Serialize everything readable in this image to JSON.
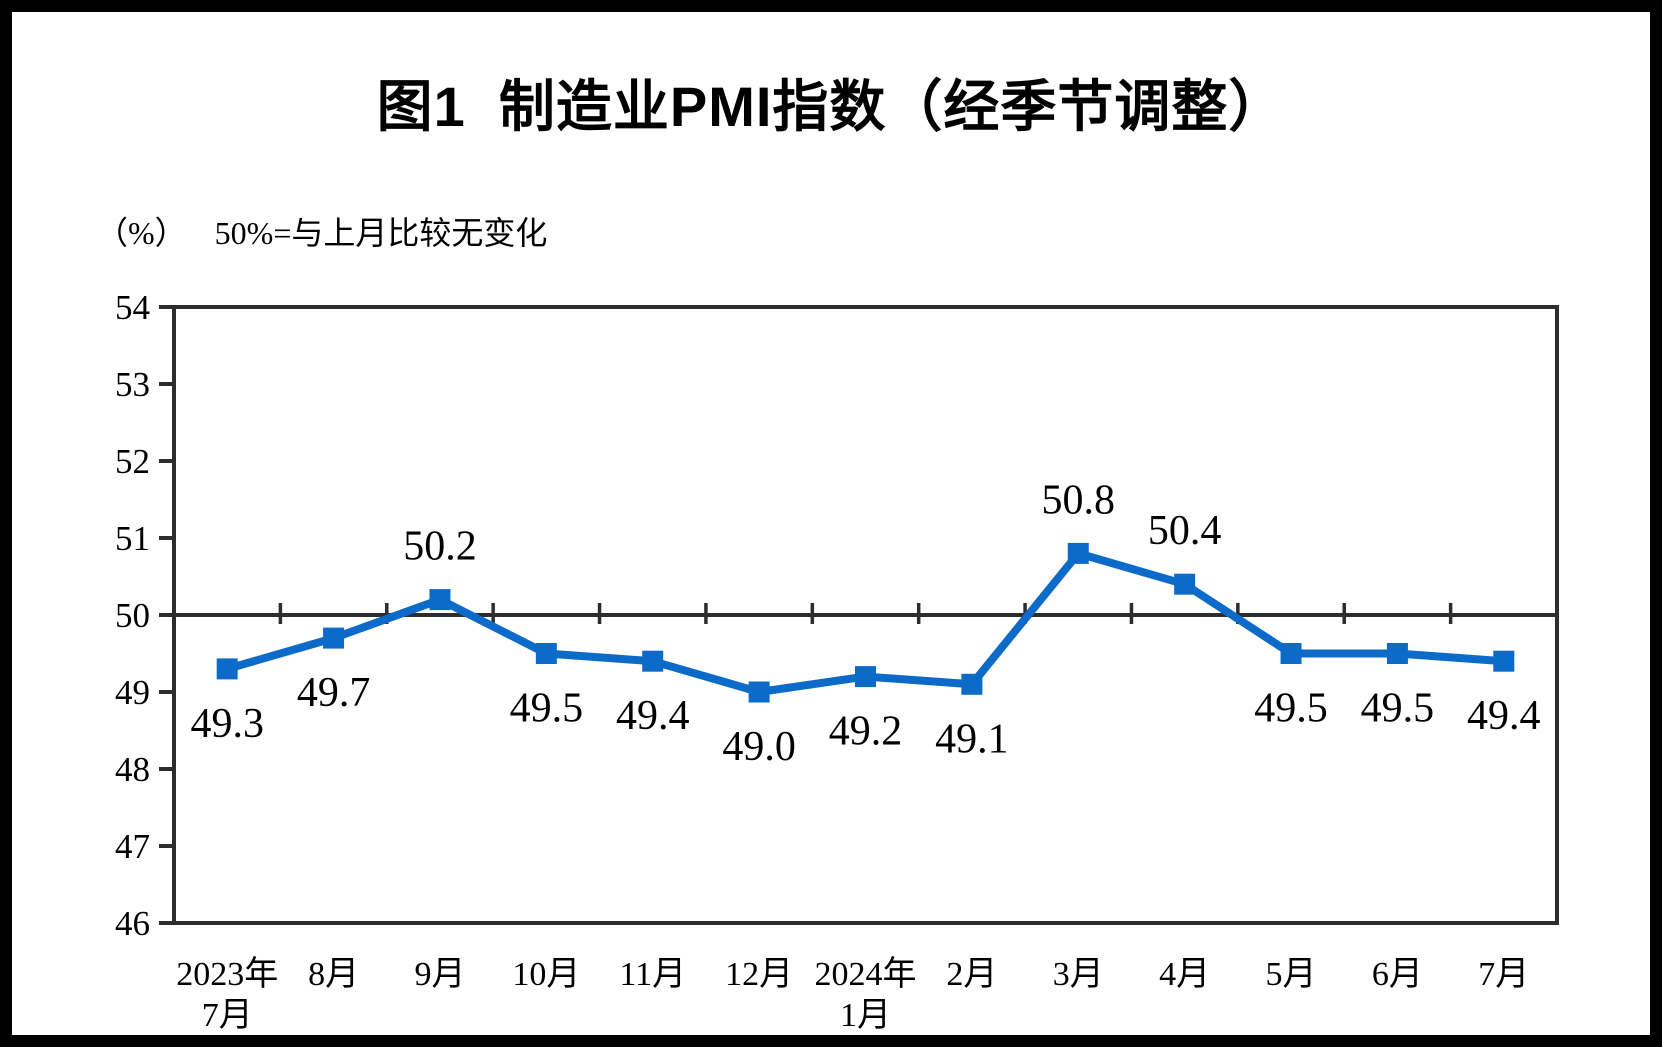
{
  "title": "图1  制造业PMI指数（经季节调整）",
  "subtitle": {
    "unit": "（%）",
    "note": "50%=与上月比较无变化"
  },
  "chart_data": {
    "type": "line",
    "categories": [
      "2023年\n7月",
      "8月",
      "9月",
      "10月",
      "11月",
      "12月",
      "2024年\n1月",
      "2月",
      "3月",
      "4月",
      "5月",
      "6月",
      "7月"
    ],
    "values": [
      49.3,
      49.7,
      50.2,
      49.5,
      49.4,
      49.0,
      49.2,
      49.1,
      50.8,
      50.4,
      49.5,
      49.5,
      49.4
    ],
    "point_labels": [
      "49.3",
      "49.7",
      "50.2",
      "49.5",
      "49.4",
      "49.0",
      "49.2",
      "49.1",
      "50.8",
      "50.4",
      "49.5",
      "49.5",
      "49.4"
    ],
    "label_position": [
      "below",
      "below",
      "above",
      "below",
      "below",
      "below",
      "below",
      "below",
      "above",
      "above",
      "below",
      "below",
      "below"
    ],
    "ylim": [
      46,
      54
    ],
    "yticks": [
      54,
      53,
      52,
      51,
      50,
      49,
      48,
      47,
      46
    ],
    "reference_line": 50,
    "grid": "reference-line-only",
    "legend": "none",
    "colors": {
      "line": "#0c6bc8",
      "marker": "#0c6bc8",
      "axis": "#2d2d2d",
      "text": "#000000"
    }
  }
}
